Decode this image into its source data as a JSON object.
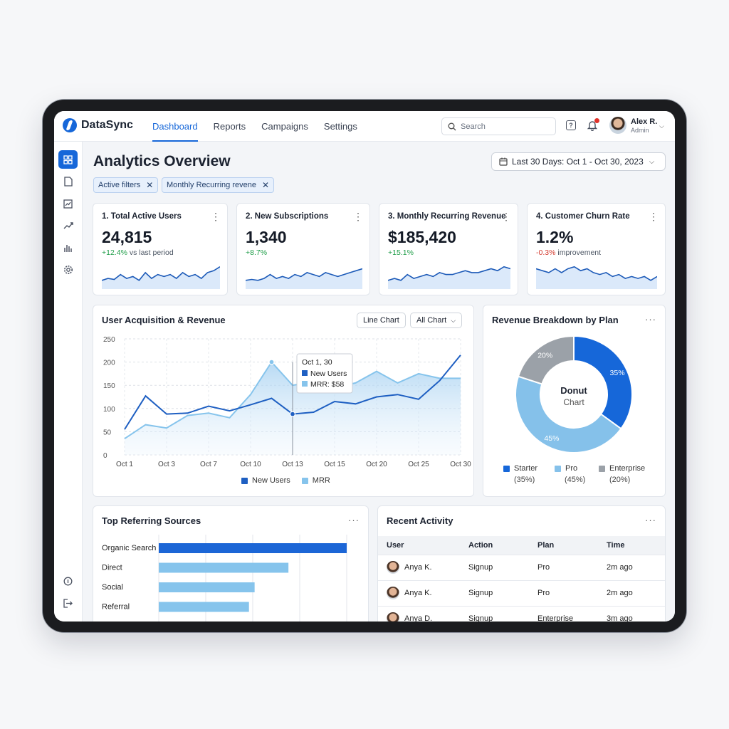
{
  "app": {
    "name": "DataSync"
  },
  "nav": {
    "items": [
      "Dashboard",
      "Reports",
      "Campaigns",
      "Settings"
    ],
    "active": "Dashboard"
  },
  "search": {
    "placeholder": "Search"
  },
  "user": {
    "name": "Alex R.",
    "role": "Admin"
  },
  "sidebar": {
    "icons": [
      "dashboard-icon",
      "document-icon",
      "report-icon",
      "trend-icon",
      "bar-chart-icon",
      "settings-icon",
      "info-icon",
      "logout-icon"
    ]
  },
  "page": {
    "title": "Analytics Overview",
    "date_range": "Last 30 Days: Oct 1 - Oct 30, 2023"
  },
  "filters": [
    {
      "label": "Active filters"
    },
    {
      "label": "Monthly Recurring revene"
    }
  ],
  "kpis": [
    {
      "title": "1. Total Active Users",
      "value": "24,815",
      "delta": "+12.4%",
      "note": "vs last period",
      "trend": "up"
    },
    {
      "title": "2. New Subscriptions",
      "value": "1,340",
      "delta": "+8.7%",
      "note": "",
      "trend": "up"
    },
    {
      "title": "3. Monthly Recurring Revenue",
      "value": "$185,420",
      "delta": "+15.1%",
      "note": "",
      "trend": "up"
    },
    {
      "title": "4. Customer Churn Rate",
      "value": "1.2%",
      "delta": "-0.3%",
      "note": "improvement",
      "trend": "down"
    }
  ],
  "acquisition": {
    "title": "User Acquisition & Revenue",
    "btn_type": "Line Chart",
    "btn_filter": "All Chart",
    "tooltip": {
      "date": "Oct 1, 30",
      "series1": "New Users",
      "series2": "MRR: $58"
    }
  },
  "breakdown": {
    "title": "Revenue Breakdown by Plan",
    "center_title": "Donut",
    "center_sub": "Chart"
  },
  "referrals": {
    "title": "Top Referring Sources"
  },
  "activity": {
    "title": "Recent Activity",
    "columns": [
      "User",
      "Action",
      "Plan",
      "Time"
    ],
    "rows": [
      {
        "user": "Anya K.",
        "action": "Signup",
        "plan": "Pro",
        "time": "2m ago"
      },
      {
        "user": "Anya K.",
        "action": "Signup",
        "plan": "Pro",
        "time": "2m ago"
      },
      {
        "user": "Anya D.",
        "action": "Signup",
        "plan": "Enterprise",
        "time": "3m ago"
      }
    ]
  },
  "colors": {
    "accent": "#1667d9",
    "light": "#85c1ea",
    "gray": "#9ba1a8",
    "positive": "#1f9d48",
    "negative": "#d43b2f"
  },
  "chart_data": [
    {
      "type": "line",
      "title": "User Acquisition & Revenue",
      "x_ticks": [
        "Oct 1",
        "Oct 3",
        "Oct 7",
        "Oct 10",
        "Oct 13",
        "Oct 15",
        "Oct 20",
        "Oct 25",
        "Oct 30"
      ],
      "y_ticks": [
        0,
        50,
        100,
        150,
        200,
        250
      ],
      "ylim": [
        0,
        250
      ],
      "x": [
        0,
        0.5,
        1,
        1.5,
        2,
        2.5,
        3,
        3.5,
        4,
        4.5,
        5,
        5.5,
        6,
        6.5,
        7,
        7.5,
        8
      ],
      "series": [
        {
          "name": "New Users",
          "values": [
            55,
            127,
            88,
            90,
            105,
            95,
            108,
            122,
            88,
            92,
            115,
            110,
            125,
            130,
            120,
            160,
            215
          ]
        },
        {
          "name": "MRR",
          "values": [
            35,
            65,
            58,
            85,
            90,
            80,
            130,
            200,
            150,
            158,
            145,
            155,
            180,
            155,
            175,
            165,
            165
          ]
        }
      ],
      "grid": true,
      "legend": "bottom"
    },
    {
      "type": "pie",
      "title": "Revenue Breakdown by Plan",
      "slices": [
        {
          "name": "Starter",
          "value": 35,
          "label": "35%",
          "legend_pct": "(35%)"
        },
        {
          "name": "Pro",
          "value": 45,
          "label": "45%",
          "legend_pct": "(45%)"
        },
        {
          "name": "Enterprise",
          "value": 20,
          "label": "20%",
          "legend_pct": "(20%)"
        }
      ],
      "legend": "bottom"
    },
    {
      "type": "bar",
      "title": "Top Referring Sources",
      "orientation": "horizontal",
      "categories": [
        "Organic Search",
        "Direct",
        "Social",
        "Referral"
      ],
      "values": [
        100,
        69,
        51,
        48
      ]
    },
    {
      "type": "line",
      "title": "KPI sparklines",
      "series": [
        {
          "values": [
            3,
            4,
            3.5,
            6,
            4,
            5,
            3,
            7,
            4,
            6,
            5,
            6,
            4,
            7,
            5,
            6,
            4,
            7,
            8,
            10
          ]
        },
        {
          "values": [
            3,
            3.5,
            3,
            4,
            6,
            4,
            5,
            4,
            6,
            5,
            7,
            6,
            5,
            7,
            6,
            5,
            6,
            7,
            8,
            9
          ]
        },
        {
          "values": [
            3,
            4,
            3,
            6,
            4,
            5,
            6,
            5,
            7,
            6,
            6,
            7,
            8,
            7,
            7,
            8,
            9,
            8,
            10,
            9
          ]
        },
        {
          "values": [
            9,
            8,
            7,
            9,
            7,
            9,
            10,
            8,
            9,
            7,
            6,
            7,
            5,
            6,
            4,
            5,
            4,
            5,
            3,
            5
          ]
        }
      ]
    }
  ]
}
